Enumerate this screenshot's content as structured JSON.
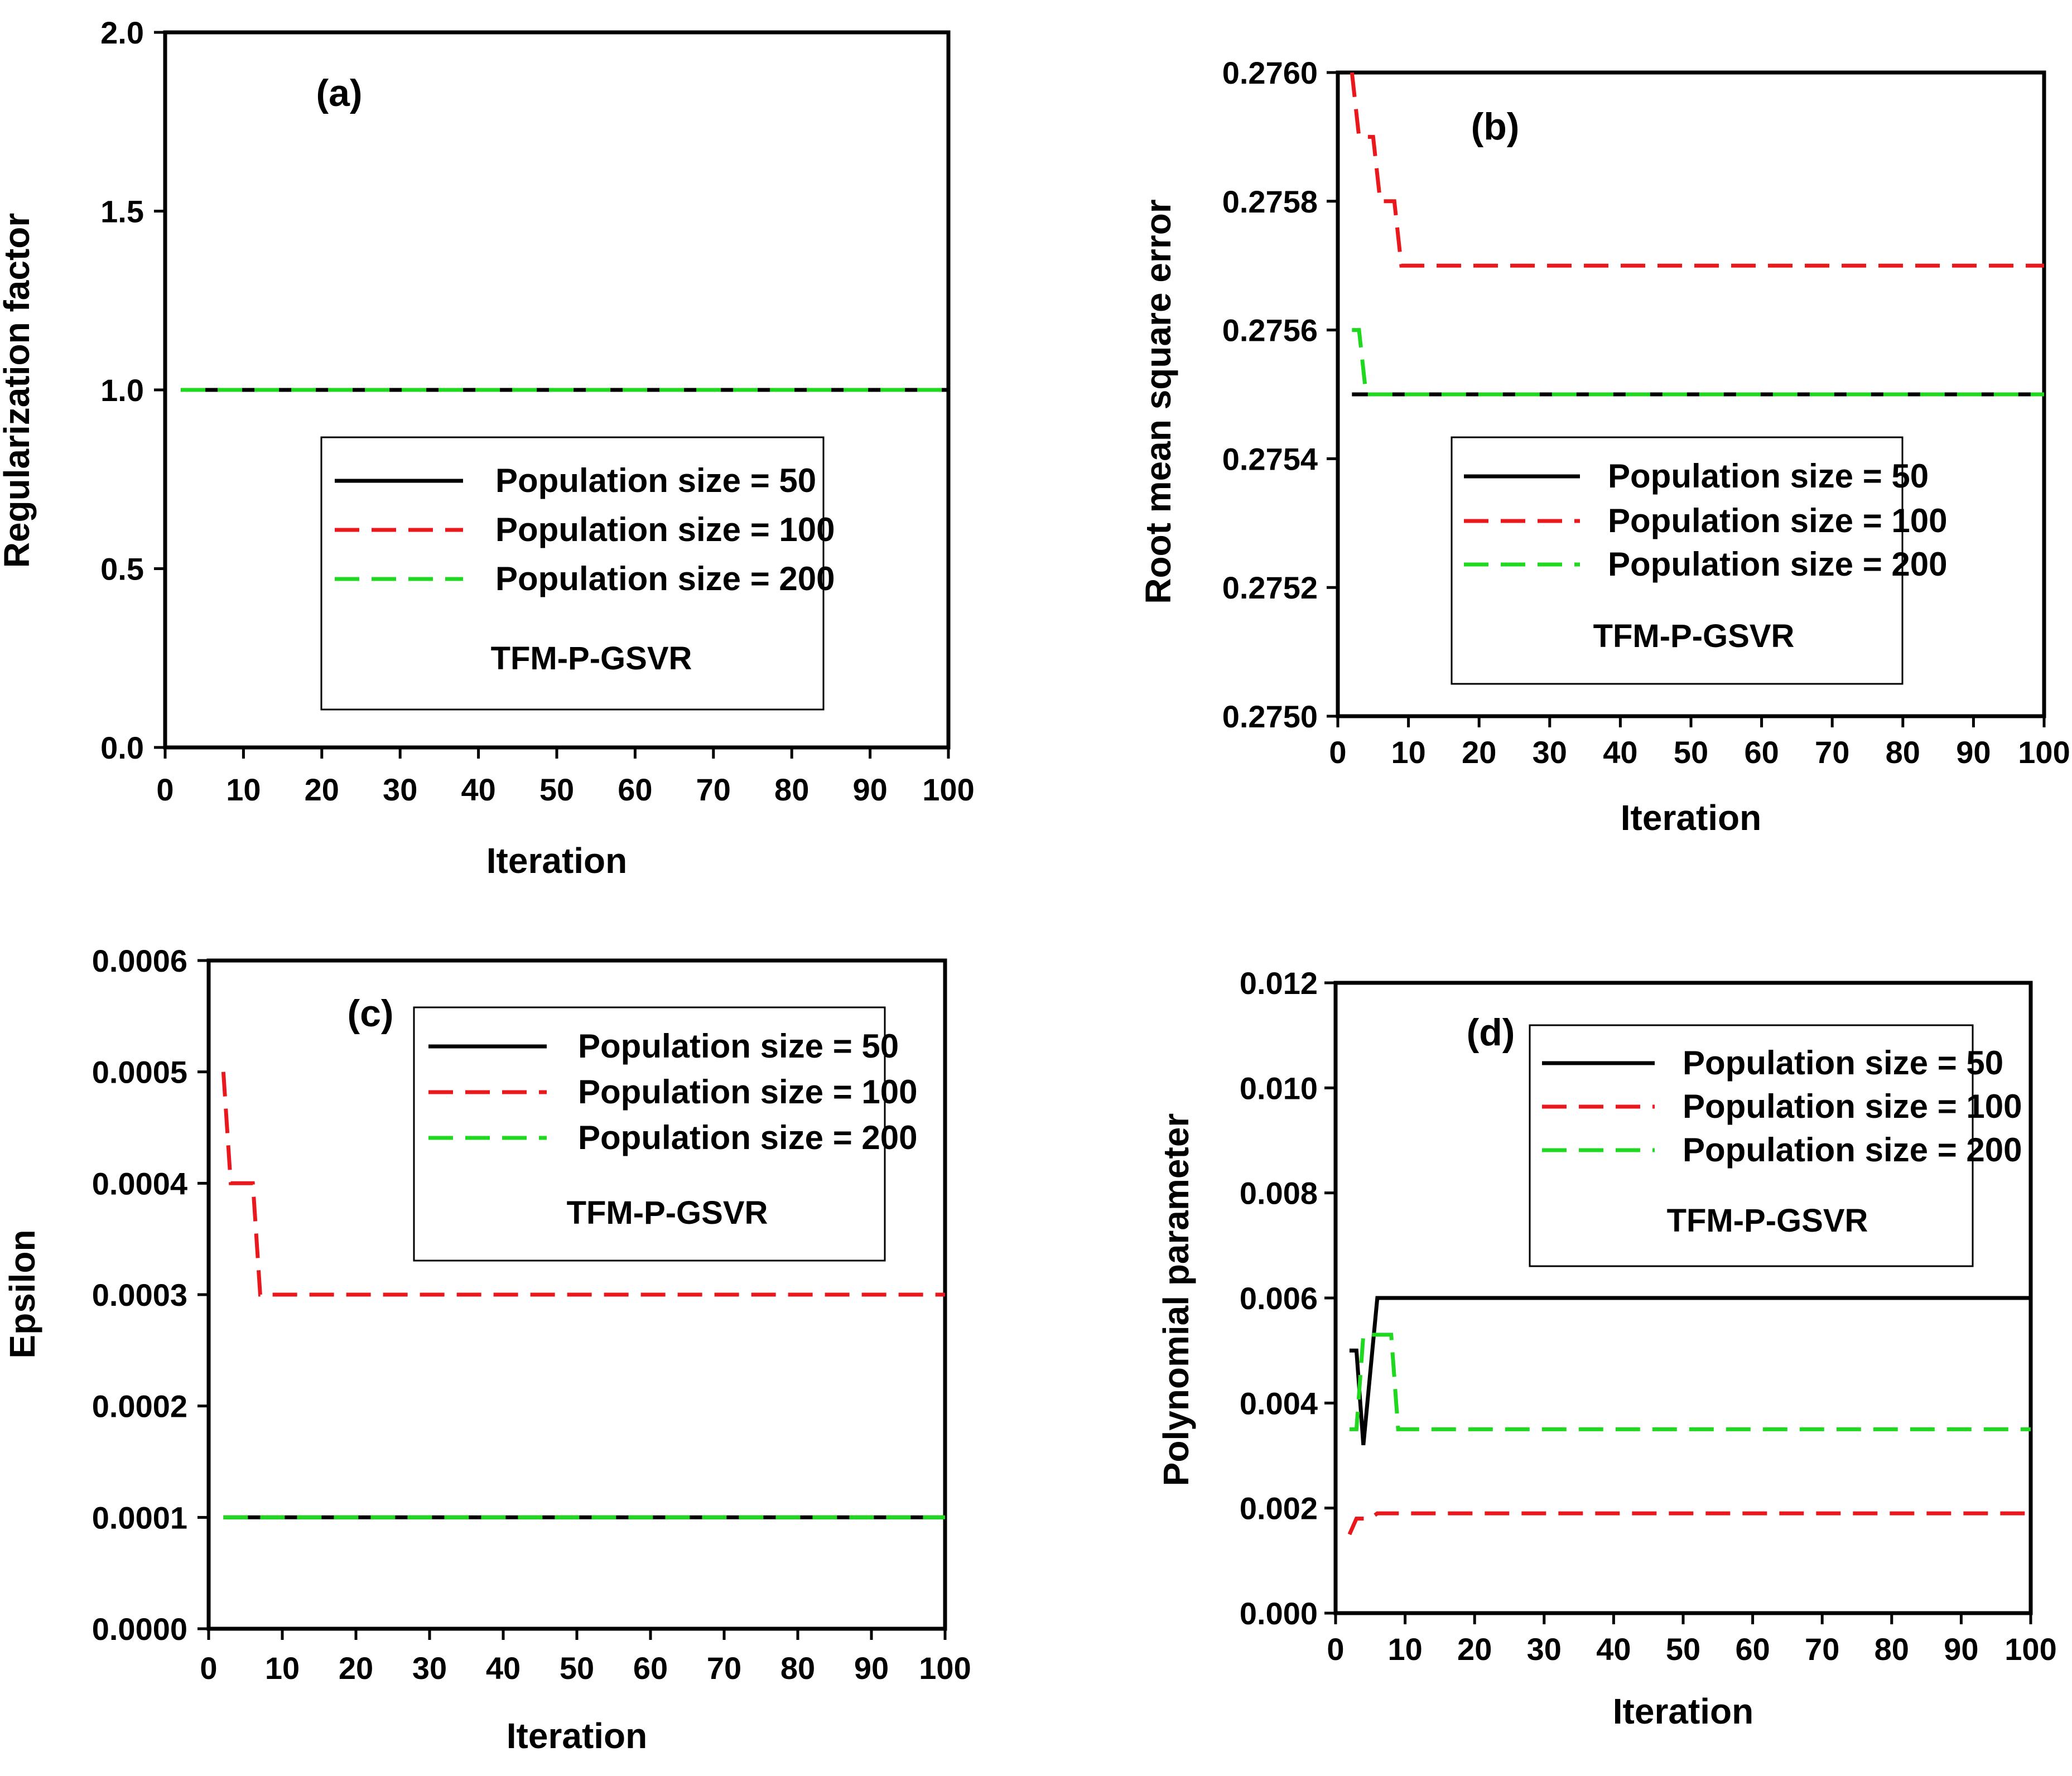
{
  "chart_data": [
    {
      "type": "line",
      "panel_label": "(a)",
      "annotation": "TFM-P-GSVR",
      "xlabel": "Iteration",
      "ylabel": "Regularization factor",
      "xlim": [
        0,
        100
      ],
      "ylim": [
        0,
        2
      ],
      "x_ticks": [
        "0",
        "10",
        "20",
        "30",
        "40",
        "50",
        "60",
        "70",
        "80",
        "90",
        "100"
      ],
      "y_ticks": [
        "0.0",
        "0.5",
        "1.0",
        "1.5",
        "2.0"
      ],
      "legend_position": "center",
      "series": [
        {
          "name": "Population size = 50",
          "color": "#000000",
          "style": "solid",
          "points": [
            [
              2,
              1.0
            ],
            [
              100,
              1.0
            ]
          ]
        },
        {
          "name": "Population size = 100",
          "color": "#e8181c",
          "style": "dash",
          "points": [
            [
              2,
              1.0
            ],
            [
              100,
              1.0
            ]
          ]
        },
        {
          "name": "Population size = 200",
          "color": "#1fd81f",
          "style": "dash",
          "points": [
            [
              2,
              1.0
            ],
            [
              100,
              1.0
            ]
          ]
        }
      ]
    },
    {
      "type": "line",
      "panel_label": "(b)",
      "annotation": "TFM-P-GSVR",
      "xlabel": "Iteration",
      "ylabel": "Root mean square error",
      "xlim": [
        0,
        100
      ],
      "ylim": [
        0.275,
        0.276
      ],
      "x_ticks": [
        "0",
        "10",
        "20",
        "30",
        "40",
        "50",
        "60",
        "70",
        "80",
        "90",
        "100"
      ],
      "y_ticks": [
        "0.2750",
        "0.2752",
        "0.2754",
        "0.2756",
        "0.2758",
        "0.2760"
      ],
      "legend_position": "center-right",
      "series": [
        {
          "name": "Population size = 50",
          "color": "#000000",
          "style": "solid",
          "points": [
            [
              2,
              0.2755
            ],
            [
              100,
              0.2755
            ]
          ]
        },
        {
          "name": "Population size = 100",
          "color": "#e8181c",
          "style": "dash",
          "points": [
            [
              2,
              0.276
            ],
            [
              3,
              0.2759
            ],
            [
              5,
              0.2759
            ],
            [
              6,
              0.2758
            ],
            [
              8,
              0.2758
            ],
            [
              9,
              0.2757
            ],
            [
              100,
              0.2757
            ]
          ]
        },
        {
          "name": "Population size = 200",
          "color": "#1fd81f",
          "style": "dash",
          "points": [
            [
              2,
              0.2756
            ],
            [
              3,
              0.2756
            ],
            [
              4,
              0.2755
            ],
            [
              100,
              0.2755
            ]
          ]
        }
      ]
    },
    {
      "type": "line",
      "panel_label": "(c)",
      "annotation": "TFM-P-GSVR",
      "xlabel": "Iteration",
      "ylabel": "Epsilon",
      "xlim": [
        0,
        100
      ],
      "ylim": [
        0,
        0.0006
      ],
      "x_ticks": [
        "0",
        "10",
        "20",
        "30",
        "40",
        "50",
        "60",
        "70",
        "80",
        "90",
        "100"
      ],
      "y_ticks": [
        "0.0000",
        "0.0001",
        "0.0002",
        "0.0003",
        "0.0004",
        "0.0005",
        "0.0006"
      ],
      "legend_position": "top-right",
      "series": [
        {
          "name": "Population size = 50",
          "color": "#000000",
          "style": "solid",
          "points": [
            [
              2,
              0.0001
            ],
            [
              100,
              0.0001
            ]
          ]
        },
        {
          "name": "Population size = 100",
          "color": "#e8181c",
          "style": "dash",
          "points": [
            [
              2,
              0.0005
            ],
            [
              3,
              0.0004
            ],
            [
              6,
              0.0004
            ],
            [
              7,
              0.0003
            ],
            [
              100,
              0.0003
            ]
          ]
        },
        {
          "name": "Population size = 200",
          "color": "#1fd81f",
          "style": "dash",
          "points": [
            [
              2,
              0.0001
            ],
            [
              100,
              0.0001
            ]
          ]
        }
      ]
    },
    {
      "type": "line",
      "panel_label": "(d)",
      "annotation": "TFM-P-GSVR",
      "xlabel": "Iteration",
      "ylabel": "Polynomial parameter",
      "xlim": [
        0,
        100
      ],
      "ylim": [
        0,
        0.012
      ],
      "x_ticks": [
        "0",
        "10",
        "20",
        "30",
        "40",
        "50",
        "60",
        "70",
        "80",
        "90",
        "100"
      ],
      "y_ticks": [
        "0.000",
        "0.002",
        "0.004",
        "0.006",
        "0.008",
        "0.010",
        "0.012"
      ],
      "legend_position": "top-right",
      "series": [
        {
          "name": "Population size = 50",
          "color": "#000000",
          "style": "solid",
          "points": [
            [
              2,
              0.005
            ],
            [
              3,
              0.005
            ],
            [
              4,
              0.0032
            ],
            [
              6,
              0.006
            ],
            [
              100,
              0.006
            ]
          ]
        },
        {
          "name": "Population size = 100",
          "color": "#e8181c",
          "style": "dash",
          "points": [
            [
              2,
              0.0015
            ],
            [
              3,
              0.0018
            ],
            [
              5,
              0.0018
            ],
            [
              6,
              0.0019
            ],
            [
              100,
              0.0019
            ]
          ]
        },
        {
          "name": "Population size = 200",
          "color": "#1fd81f",
          "style": "dash",
          "points": [
            [
              2,
              0.0035
            ],
            [
              3,
              0.0035
            ],
            [
              4,
              0.0053
            ],
            [
              8,
              0.0053
            ],
            [
              9,
              0.0035
            ],
            [
              100,
              0.0035
            ]
          ]
        }
      ]
    }
  ]
}
